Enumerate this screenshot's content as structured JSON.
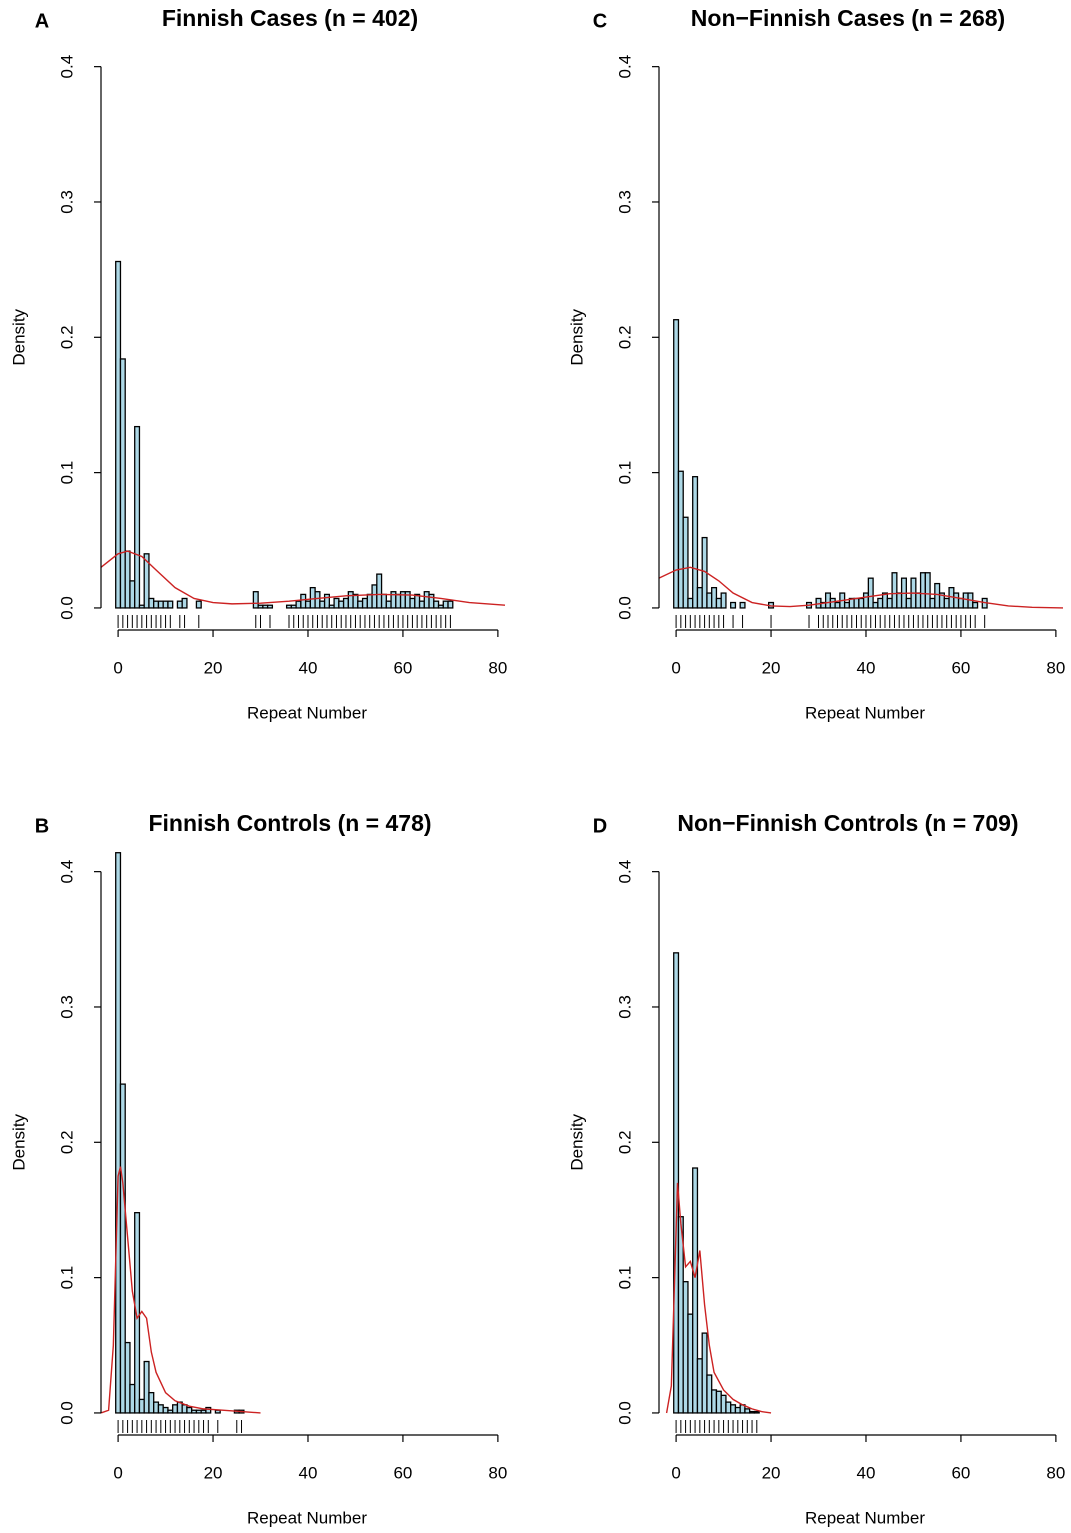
{
  "chart_data": [
    {
      "type": "histogram",
      "panel": "A",
      "title": "Finnish Cases (n = 402)",
      "x_label": "Repeat Number",
      "y_label": "Density",
      "bins": [
        -0.5,
        0.5,
        1.5,
        2.5,
        3.5,
        4.5,
        5.5,
        6.5,
        7.5,
        8.5,
        9.5,
        10.5,
        11.5,
        12.5,
        13.5,
        14.5,
        15.5,
        16.5,
        17.5,
        18.5,
        19.5,
        20.5,
        21.5,
        22.5,
        23.5,
        24.5,
        25.5,
        26.5,
        27.5,
        28.5,
        29.5,
        30.5,
        31.5,
        32.5,
        33.5,
        34.5,
        35.5,
        36.5,
        37.5,
        38.5,
        39.5,
        40.5,
        41.5,
        42.5,
        43.5,
        44.5,
        45.5,
        46.5,
        47.5,
        48.5,
        49.5,
        50.5,
        51.5,
        52.5,
        53.5,
        54.5,
        55.5,
        56.5,
        57.5,
        58.5,
        59.5,
        60.5,
        61.5,
        62.5,
        63.5,
        64.5,
        65.5,
        66.5,
        67.5,
        68.5,
        69.5,
        70.5
      ],
      "values": [
        0.256,
        0.184,
        0.042,
        0.02,
        0.134,
        0.002,
        0.04,
        0.007,
        0.005,
        0.005,
        0.005,
        0.005,
        0,
        0.005,
        0.007,
        0,
        0,
        0.005,
        0,
        0,
        0,
        0,
        0,
        0,
        0,
        0,
        0,
        0,
        0,
        0.012,
        0.002,
        0.002,
        0.002,
        0,
        0,
        0,
        0.002,
        0.002,
        0.005,
        0.01,
        0.005,
        0.015,
        0.012,
        0.005,
        0.01,
        0.002,
        0.007,
        0.005,
        0.007,
        0.012,
        0.01,
        0.005,
        0.007,
        0.01,
        0.017,
        0.025,
        0.01,
        0.005,
        0.012,
        0.01,
        0.012,
        0.012,
        0.007,
        0.01,
        0.005,
        0.012,
        0.01,
        0.005,
        0.002,
        0.005,
        0.005
      ],
      "color": "#add8e6",
      "edge_color": "#000000",
      "density": {
        "color": "#cc2222",
        "x": [
          -3.6,
          0,
          2,
          5,
          8,
          12,
          16,
          20,
          24,
          30,
          36,
          42,
          48,
          55,
          62,
          68,
          74,
          81.5
        ],
        "values": [
          0.03,
          0.04,
          0.042,
          0.038,
          0.028,
          0.015,
          0.007,
          0.004,
          0.003,
          0.0035,
          0.005,
          0.007,
          0.009,
          0.01,
          0.0095,
          0.007,
          0.004,
          0.002
        ]
      },
      "rug": [
        0,
        1,
        2,
        3,
        4,
        5,
        6,
        7,
        8,
        9,
        10,
        11,
        13,
        14,
        17,
        29,
        30,
        32,
        36,
        37,
        38,
        39,
        40,
        41,
        42,
        43,
        44,
        45,
        46,
        47,
        48,
        49,
        50,
        51,
        52,
        53,
        54,
        55,
        56,
        57,
        58,
        59,
        60,
        61,
        62,
        63,
        64,
        65,
        66,
        67,
        68,
        69,
        70
      ],
      "xlim": [
        -3.6,
        81.5
      ],
      "ylim": [
        -0.0163,
        0.416
      ],
      "xticks": [
        0,
        20,
        40,
        60,
        80
      ],
      "yticks": [
        {
          "value": 0,
          "label": "0.0"
        },
        0.1,
        0.2,
        0.3,
        0.4
      ]
    },
    {
      "type": "histogram",
      "panel": "B",
      "title": "Finnish Controls (n = 478)",
      "x_label": "Repeat Number",
      "y_label": "Density",
      "bins": [
        -0.5,
        0.5,
        1.5,
        2.5,
        3.5,
        4.5,
        5.5,
        6.5,
        7.5,
        8.5,
        9.5,
        10.5,
        11.5,
        12.5,
        13.5,
        14.5,
        15.5,
        16.5,
        17.5,
        18.5,
        19.5,
        20.5,
        21.5,
        22.5,
        23.5,
        24.5,
        25.5,
        26.5
      ],
      "values": [
        0.414,
        0.243,
        0.052,
        0.021,
        0.148,
        0.01,
        0.038,
        0.015,
        0.008,
        0.006,
        0.004,
        0.002,
        0.006,
        0.008,
        0.006,
        0.004,
        0.002,
        0.002,
        0.002,
        0.004,
        0,
        0.002,
        0,
        0,
        0,
        0.002,
        0.002
      ],
      "color": "#add8e6",
      "edge_color": "#000000",
      "density": {
        "color": "#cc2222",
        "x": [
          -3.6,
          -2,
          -1,
          0,
          0.5,
          1,
          2,
          3,
          4,
          5,
          6,
          7,
          8,
          10,
          12,
          15,
          18,
          22,
          26,
          30
        ],
        "values": [
          0,
          0.002,
          0.05,
          0.175,
          0.182,
          0.17,
          0.13,
          0.09,
          0.07,
          0.075,
          0.07,
          0.045,
          0.03,
          0.015,
          0.009,
          0.005,
          0.003,
          0.002,
          0.001,
          0
        ]
      },
      "rug": [
        0,
        1,
        2,
        3,
        4,
        5,
        6,
        7,
        8,
        9,
        10,
        11,
        12,
        13,
        14,
        15,
        16,
        17,
        18,
        19,
        21,
        25,
        26
      ],
      "xlim": [
        -3.6,
        81.5
      ],
      "ylim": [
        -0.0163,
        0.416
      ],
      "xticks": [
        0,
        20,
        40,
        60,
        80
      ],
      "yticks": [
        {
          "value": 0,
          "label": "0.0"
        },
        0.1,
        0.2,
        0.3,
        0.4
      ]
    },
    {
      "type": "histogram",
      "panel": "C",
      "title": "Non−Finnish Cases (n = 268)",
      "x_label": "Repeat Number",
      "y_label": "Density",
      "bins": [
        -0.5,
        0.5,
        1.5,
        2.5,
        3.5,
        4.5,
        5.5,
        6.5,
        7.5,
        8.5,
        9.5,
        10.5,
        11.5,
        12.5,
        13.5,
        14.5,
        15.5,
        16.5,
        17.5,
        18.5,
        19.5,
        20.5,
        21.5,
        22.5,
        23.5,
        24.5,
        25.5,
        26.5,
        27.5,
        28.5,
        29.5,
        30.5,
        31.5,
        32.5,
        33.5,
        34.5,
        35.5,
        36.5,
        37.5,
        38.5,
        39.5,
        40.5,
        41.5,
        42.5,
        43.5,
        44.5,
        45.5,
        46.5,
        47.5,
        48.5,
        49.5,
        50.5,
        51.5,
        52.5,
        53.5,
        54.5,
        55.5,
        56.5,
        57.5,
        58.5,
        59.5,
        60.5,
        61.5,
        62.5,
        63.5,
        64.5,
        65.5
      ],
      "values": [
        0.213,
        0.101,
        0.067,
        0.007,
        0.097,
        0.015,
        0.052,
        0.011,
        0.015,
        0.007,
        0.011,
        0,
        0.004,
        0,
        0.004,
        0,
        0,
        0,
        0,
        0,
        0.004,
        0,
        0,
        0,
        0,
        0,
        0,
        0,
        0.004,
        0,
        0.007,
        0.004,
        0.011,
        0.007,
        0.004,
        0.011,
        0.004,
        0.007,
        0.007,
        0.007,
        0.011,
        0.022,
        0.004,
        0.007,
        0.011,
        0.007,
        0.026,
        0.011,
        0.022,
        0.007,
        0.022,
        0.011,
        0.026,
        0.026,
        0.007,
        0.018,
        0.011,
        0.007,
        0.015,
        0.011,
        0.007,
        0.011,
        0.011,
        0.004,
        0,
        0.007
      ],
      "color": "#add8e6",
      "edge_color": "#000000",
      "density": {
        "color": "#cc2222",
        "x": [
          -3.6,
          0,
          3,
          6,
          9,
          12,
          16,
          20,
          24,
          28,
          32,
          36,
          40,
          45,
          50,
          55,
          60,
          65,
          70,
          75,
          81.5
        ],
        "values": [
          0.022,
          0.028,
          0.03,
          0.027,
          0.02,
          0.011,
          0.004,
          0.0015,
          0.001,
          0.002,
          0.004,
          0.006,
          0.008,
          0.0105,
          0.011,
          0.01,
          0.007,
          0.004,
          0.0015,
          0.0005,
          0
        ]
      },
      "rug": [
        0,
        1,
        2,
        3,
        4,
        5,
        6,
        7,
        8,
        9,
        10,
        12,
        14,
        20,
        28,
        30,
        31,
        32,
        33,
        34,
        35,
        36,
        37,
        38,
        39,
        40,
        41,
        42,
        43,
        44,
        45,
        46,
        47,
        48,
        49,
        50,
        51,
        52,
        53,
        54,
        55,
        56,
        57,
        58,
        59,
        60,
        61,
        62,
        63,
        65
      ],
      "xlim": [
        -3.6,
        81.5
      ],
      "ylim": [
        -0.0163,
        0.416
      ],
      "xticks": [
        0,
        20,
        40,
        60,
        80
      ],
      "yticks": [
        {
          "value": 0,
          "label": "0.0"
        },
        0.1,
        0.2,
        0.3,
        0.4
      ]
    },
    {
      "type": "histogram",
      "panel": "D",
      "title": "Non−Finnish Controls (n = 709)",
      "x_label": "Repeat Number",
      "y_label": "Density",
      "bins": [
        -0.5,
        0.5,
        1.5,
        2.5,
        3.5,
        4.5,
        5.5,
        6.5,
        7.5,
        8.5,
        9.5,
        10.5,
        11.5,
        12.5,
        13.5,
        14.5,
        15.5,
        16.5,
        17.5
      ],
      "values": [
        0.34,
        0.145,
        0.097,
        0.073,
        0.181,
        0.04,
        0.059,
        0.028,
        0.017,
        0.016,
        0.013,
        0.008,
        0.006,
        0.004,
        0.006,
        0.003,
        0.001,
        0.001
      ],
      "color": "#add8e6",
      "edge_color": "#000000",
      "density": {
        "color": "#cc2222",
        "x": [
          -2,
          -1,
          -0.3,
          0.3,
          1,
          2,
          3,
          4,
          5,
          6,
          7,
          8,
          10,
          12,
          14,
          16,
          18,
          20
        ],
        "values": [
          0,
          0.02,
          0.1,
          0.17,
          0.14,
          0.108,
          0.112,
          0.1,
          0.12,
          0.08,
          0.05,
          0.03,
          0.017,
          0.01,
          0.006,
          0.003,
          0.001,
          0
        ]
      },
      "rug": [
        0,
        1,
        2,
        3,
        4,
        5,
        6,
        7,
        8,
        9,
        10,
        11,
        12,
        13,
        14,
        15,
        16,
        17
      ],
      "xlim": [
        -3.6,
        81.5
      ],
      "ylim": [
        -0.0163,
        0.416
      ],
      "xticks": [
        0,
        20,
        40,
        60,
        80
      ],
      "yticks": [
        {
          "value": 0,
          "label": "0.0"
        },
        0.1,
        0.2,
        0.3,
        0.4
      ]
    }
  ]
}
